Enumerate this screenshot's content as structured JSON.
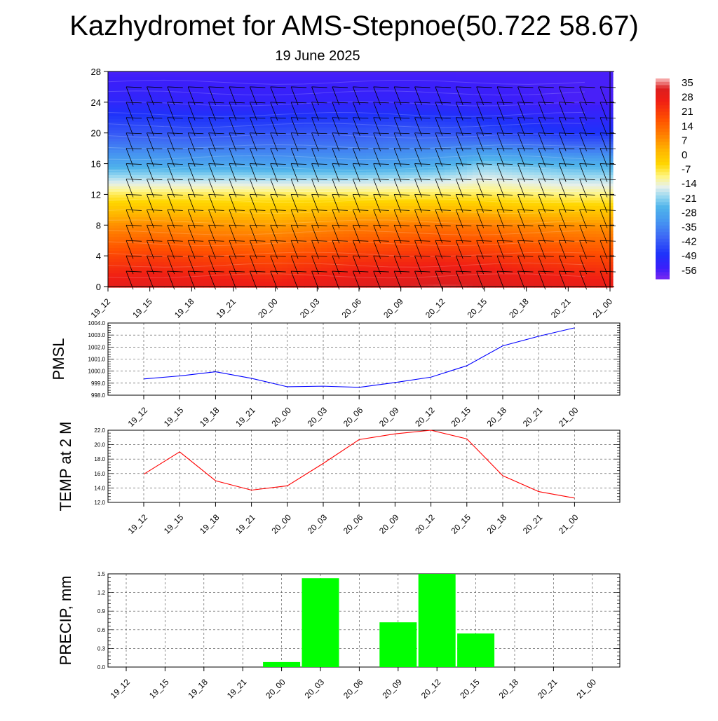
{
  "title": "Kazhydromet for AMS-Stepnoe(50.722 58.67)",
  "subtitle": "19 June 2025",
  "chart_data": [
    {
      "type": "heatmap",
      "name": "cross-section",
      "ylim": [
        0,
        28
      ],
      "yticks": [
        0,
        4,
        8,
        12,
        16,
        20,
        24,
        28
      ],
      "categories": [
        "19_12",
        "19_15",
        "19_18",
        "19_21",
        "20_00",
        "20_03",
        "20_06",
        "20_09",
        "20_12",
        "20_15",
        "20_18",
        "20_21",
        "21_00"
      ],
      "levels": [
        0,
        4,
        8,
        12,
        16,
        20,
        24,
        28
      ],
      "values_approx": [
        [
          30,
          31,
          30,
          29,
          28,
          30,
          32,
          33,
          34,
          33,
          31,
          30,
          29
        ],
        [
          20,
          21,
          20,
          19,
          18,
          20,
          22,
          23,
          24,
          23,
          21,
          20,
          19
        ],
        [
          8,
          9,
          8,
          7,
          6,
          8,
          10,
          11,
          12,
          11,
          9,
          8,
          7
        ],
        [
          -8,
          -8,
          -8,
          -8,
          -8,
          -8,
          -8,
          -8,
          -8,
          -8,
          -9,
          -10,
          -10
        ],
        [
          -28,
          -28,
          -29,
          -29,
          -30,
          -30,
          -30,
          -29,
          -27,
          -22,
          -24,
          -26,
          -27
        ],
        [
          -42,
          -42,
          -43,
          -43,
          -43,
          -42,
          -42,
          -41,
          -42,
          -44,
          -46,
          -48,
          -48
        ],
        [
          -52,
          -52,
          -53,
          -53,
          -53,
          -53,
          -53,
          -53,
          -53,
          -54,
          -55,
          -56,
          -56
        ],
        [
          -56,
          -56,
          -56,
          -56,
          -56,
          -56,
          -56,
          -56,
          -56,
          -56,
          -56,
          -56,
          -56
        ]
      ],
      "colorbar": {
        "labels": [
          "35",
          "28",
          "21",
          "14",
          "7",
          "0",
          "-7",
          "-14",
          "-21",
          "-28",
          "-35",
          "-42",
          "-49",
          "-56"
        ],
        "min": -60,
        "max": 38
      }
    },
    {
      "type": "line",
      "ylabel": "PMSL",
      "ylim": [
        998.0,
        1004.0
      ],
      "yticks": [
        "998.0",
        "999.0",
        "1000.0",
        "1001.0",
        "1002.0",
        "1003.0",
        "1004.0"
      ],
      "categories": [
        "19_12",
        "19_15",
        "19_18",
        "19_21",
        "20_00",
        "20_03",
        "20_06",
        "20_09",
        "20_12",
        "20_15",
        "20_18",
        "20_21",
        "21_00"
      ],
      "values": [
        999.35,
        999.6,
        999.95,
        999.4,
        998.7,
        998.75,
        998.65,
        999.05,
        999.5,
        1000.45,
        1002.1,
        1002.9,
        1003.6
      ],
      "color": "#0000ff"
    },
    {
      "type": "line",
      "ylabel": "TEMP at 2 M",
      "ylim": [
        12.0,
        22.0
      ],
      "yticks": [
        "12.0",
        "14.0",
        "16.0",
        "18.0",
        "20.0",
        "22.0"
      ],
      "categories": [
        "19_12",
        "19_15",
        "19_18",
        "19_21",
        "20_00",
        "20_03",
        "20_06",
        "20_09",
        "20_12",
        "20_15",
        "20_18",
        "20_21",
        "21_00"
      ],
      "values": [
        15.9,
        19.0,
        15.0,
        13.7,
        14.3,
        17.4,
        20.7,
        21.5,
        22.0,
        20.8,
        15.7,
        13.5,
        12.6
      ],
      "color": "#ff0000"
    },
    {
      "type": "bar",
      "ylabel": "PRECIP, mm",
      "ylim": [
        0.0,
        1.5
      ],
      "yticks": [
        "0.0",
        "0.3",
        "0.6",
        "0.9",
        "1.2",
        "1.5"
      ],
      "categories": [
        "19_12",
        "19_15",
        "19_18",
        "19_21",
        "20_00",
        "20_03",
        "20_06",
        "20_09",
        "20_12",
        "20_15",
        "20_18",
        "20_21",
        "21_00"
      ],
      "values": [
        0,
        0,
        0,
        0,
        0.08,
        1.43,
        0,
        0.72,
        1.5,
        0.54,
        0,
        0,
        0
      ],
      "color": "#00ff00"
    }
  ]
}
